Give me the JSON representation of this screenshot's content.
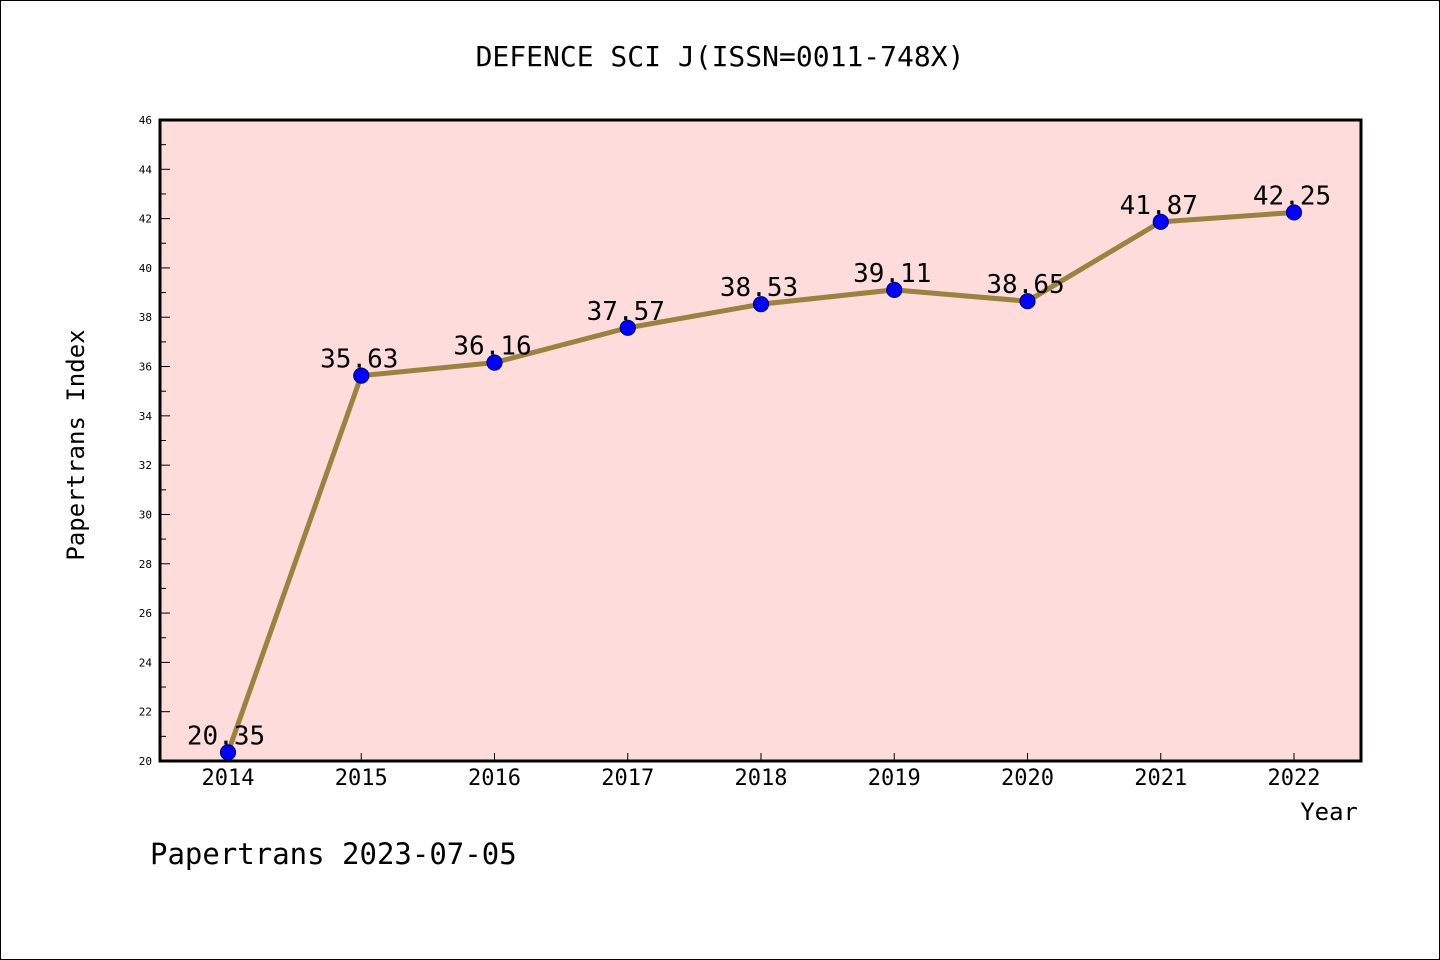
{
  "footer": {
    "credit": "Papertrans 2023-07-05"
  },
  "chart_data": {
    "type": "line",
    "title": "DEFENCE SCI J(ISSN=0011-748X)",
    "xlabel": "Year",
    "ylabel": "Papertrans Index",
    "categories": [
      "2014",
      "2015",
      "2016",
      "2017",
      "2018",
      "2019",
      "2020",
      "2021",
      "2022"
    ],
    "values": [
      20.35,
      35.63,
      36.16,
      37.57,
      38.53,
      39.11,
      38.65,
      41.87,
      42.25
    ],
    "data_labels": [
      "20.35",
      "35.63",
      "36.16",
      "37.57",
      "38.53",
      "39.11",
      "38.65",
      "41.87",
      "42.25"
    ],
    "ylim": [
      20,
      46
    ],
    "y_ticks": [
      "20",
      "22",
      "24",
      "26",
      "28",
      "30",
      "32",
      "34",
      "36",
      "38",
      "40",
      "42",
      "44",
      "46"
    ],
    "grid": false,
    "legend": "none",
    "colors": {
      "plot_background": "#ffdcdc",
      "line": "#9a8240",
      "marker": "#0000ff",
      "axis": "#000000"
    }
  }
}
